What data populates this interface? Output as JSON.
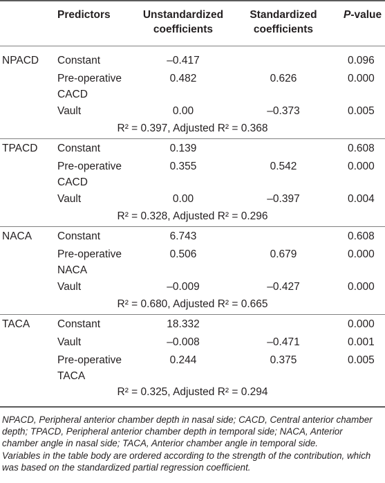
{
  "headers": {
    "group": "",
    "predictors": "Predictors",
    "unstd_line1": "Unstandardized",
    "unstd_line2": "coefficients",
    "std_line1": "Standardized",
    "std_line2": "coefficients",
    "p_value_p": "P",
    "p_value_rest": "-value"
  },
  "groups": [
    {
      "name": "NPACD",
      "rows": [
        {
          "pred": [
            "Constant"
          ],
          "unstd": "–0.417",
          "std": "",
          "p": "0.096"
        },
        {
          "pred": [
            "Pre-operative",
            "CACD"
          ],
          "unstd": "0.482",
          "std": "0.626",
          "p": "0.000"
        },
        {
          "pred": [
            "Vault"
          ],
          "unstd": "0.00",
          "std": "–0.373",
          "p": "0.005"
        }
      ],
      "r2": "R² = 0.397, Adjusted R² = 0.368"
    },
    {
      "name": "TPACD",
      "rows": [
        {
          "pred": [
            "Constant"
          ],
          "unstd": "0.139",
          "std": "",
          "p": "0.608"
        },
        {
          "pred": [
            "Pre-operative",
            "CACD"
          ],
          "unstd": "0.355",
          "std": "0.542",
          "p": "0.000"
        },
        {
          "pred": [
            "Vault"
          ],
          "unstd": "0.00",
          "std": "–0.397",
          "p": "0.004"
        }
      ],
      "r2": "R² = 0.328, Adjusted R² = 0.296"
    },
    {
      "name": "NACA",
      "rows": [
        {
          "pred": [
            "Constant"
          ],
          "unstd": "6.743",
          "std": "",
          "p": "0.608"
        },
        {
          "pred": [
            "Pre-operative",
            "NACA"
          ],
          "unstd": "0.506",
          "std": "0.679",
          "p": "0.000"
        },
        {
          "pred": [
            "Vault"
          ],
          "unstd": "–0.009",
          "std": "–0.427",
          "p": "0.000"
        }
      ],
      "r2": "R² = 0.680, Adjusted R² = 0.665"
    },
    {
      "name": "TACA",
      "rows": [
        {
          "pred": [
            "Constant"
          ],
          "unstd": "18.332",
          "std": "",
          "p": "0.000"
        },
        {
          "pred": [
            "Vault"
          ],
          "unstd": "–0.008",
          "std": "–0.471",
          "p": "0.001"
        },
        {
          "pred": [
            "Pre-operative",
            "TACA"
          ],
          "unstd": "0.244",
          "std": "0.375",
          "p": "0.005"
        }
      ],
      "r2": "R² = 0.325, Adjusted R² = 0.294"
    }
  ],
  "footnote": {
    "line1": "NPACD, Peripheral anterior chamber depth in nasal side; CACD, Central anterior chamber",
    "line2": "depth; TPACD, Peripheral anterior chamber depth in temporal side; NACA, Anterior",
    "line3": "chamber angle in nasal side; TACA, Anterior chamber angle in temporal side.",
    "line4": "Variables in the table body are ordered according to the strength of the contribution, which",
    "line5": "was based on the standardized partial regression coefficient."
  }
}
